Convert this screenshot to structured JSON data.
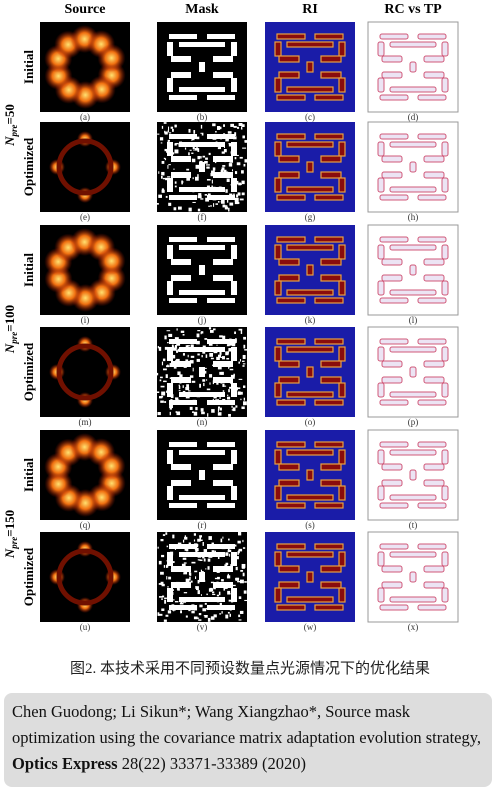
{
  "columns": [
    "Source",
    "Mask",
    "RI",
    "RC vs TP"
  ],
  "groups": [
    {
      "symbol": "N",
      "subscript": "pre",
      "suffix": "=50",
      "rows": [
        {
          "label": "Initial",
          "panels": [
            "(a)",
            "(b)",
            "(c)",
            "(d)"
          ]
        },
        {
          "label": "Optimized",
          "panels": [
            "(e)",
            "(f)",
            "(g)",
            "(h)"
          ]
        }
      ]
    },
    {
      "symbol": "N",
      "subscript": "pre",
      "suffix": "=100",
      "rows": [
        {
          "label": "Initial",
          "panels": [
            "(i)",
            "(j)",
            "(k)",
            "(l)"
          ]
        },
        {
          "label": "Optimized",
          "panels": [
            "(m)",
            "(n)",
            "(o)",
            "(p)"
          ]
        }
      ]
    },
    {
      "symbol": "N",
      "subscript": "pre",
      "suffix": "=150",
      "rows": [
        {
          "label": "Initial",
          "panels": [
            "(q)",
            "(r)",
            "(s)",
            "(t)"
          ]
        },
        {
          "label": "Optimized",
          "panels": [
            "(u)",
            "(v)",
            "(w)",
            "(x)"
          ]
        }
      ]
    }
  ],
  "caption": "图2. 本技术采用不同预设数量点光源情况下的优化结果",
  "citation": {
    "authors": "Chen Guodong; Li Sikun*; Wang Xiangzhao*,",
    "title": "Source mask optimization using the covariance matrix adaptation evolution strategy,",
    "journal": "Optics Express",
    "details": "28(22) 33371-33389 (2020)"
  }
}
